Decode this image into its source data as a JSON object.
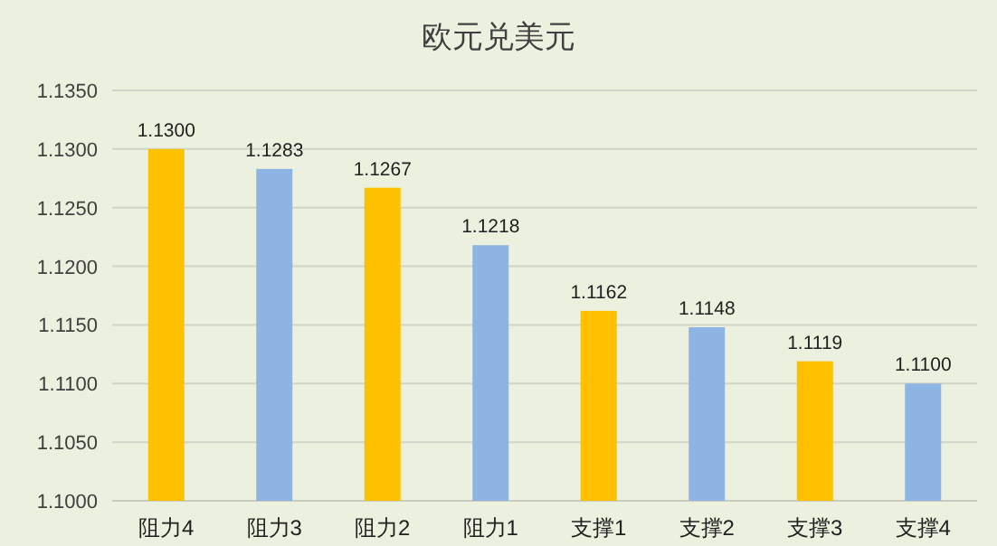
{
  "chart_data": {
    "type": "bar",
    "title": "欧元兑美元",
    "categories": [
      "阻力4",
      "阻力3",
      "阻力2",
      "阻力1",
      "支撑1",
      "支撑2",
      "支撑3",
      "支撑4"
    ],
    "values": [
      1.13,
      1.1283,
      1.1267,
      1.1218,
      1.1162,
      1.1148,
      1.1119,
      1.11
    ],
    "value_labels": [
      "1.1300",
      "1.1283",
      "1.1267",
      "1.1218",
      "1.1162",
      "1.1148",
      "1.1119",
      "1.1100"
    ],
    "colors": [
      "#ffc000",
      "#8eb4e3",
      "#ffc000",
      "#8eb4e3",
      "#ffc000",
      "#8eb4e3",
      "#ffc000",
      "#8eb4e3"
    ],
    "ylim": [
      1.1,
      1.135
    ],
    "yticks": [
      {
        "value": 1.1,
        "label": "1.1000"
      },
      {
        "value": 1.105,
        "label": "1.1050"
      },
      {
        "value": 1.11,
        "label": "1.1100"
      },
      {
        "value": 1.115,
        "label": "1.1150"
      },
      {
        "value": 1.12,
        "label": "1.1200"
      },
      {
        "value": 1.125,
        "label": "1.1250"
      },
      {
        "value": 1.13,
        "label": "1.1300"
      },
      {
        "value": 1.135,
        "label": "1.1350"
      }
    ],
    "grid": "y"
  }
}
